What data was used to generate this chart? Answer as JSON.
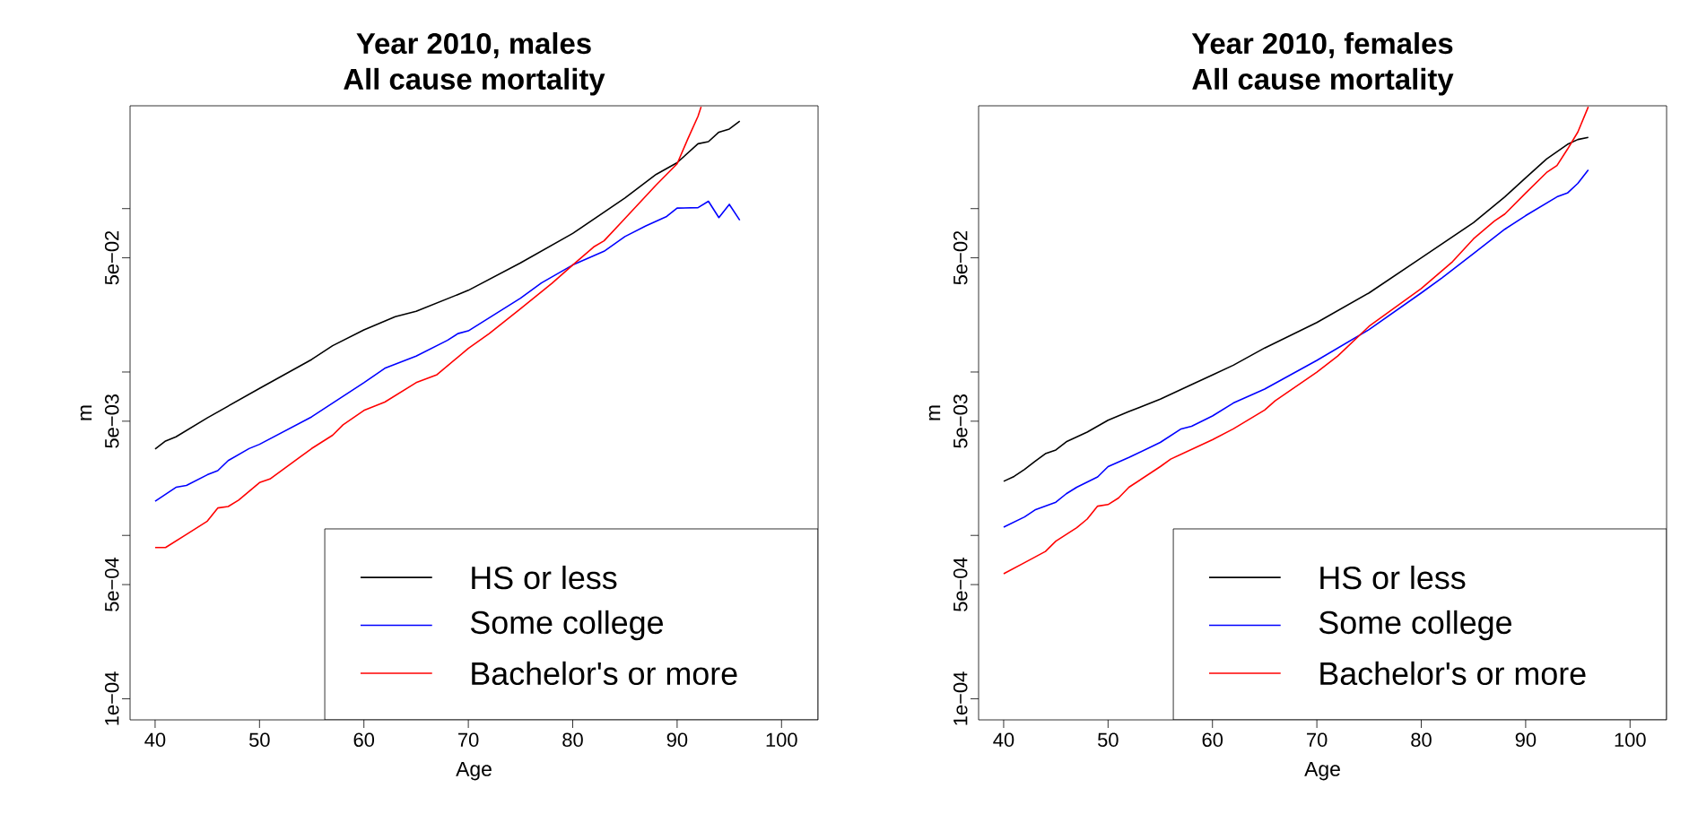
{
  "chart_data": [
    {
      "type": "line",
      "title": "Year 2010, males",
      "subtitle": "All cause mortality",
      "xlabel": "Age",
      "ylabel": "m",
      "log": "y",
      "legend": "bottom right",
      "xlim": [
        37.6,
        103.5
      ],
      "ylim": [
        7.43e-05,
        0.426
      ],
      "xticks": [
        40,
        50,
        60,
        70,
        80,
        90,
        100
      ],
      "yticks": [
        {
          "value": 0.0001,
          "label": "1e−04"
        },
        {
          "value": 0.0005,
          "label": "5e−04"
        },
        {
          "value": 0.001,
          "label": null
        },
        {
          "value": 0.005,
          "label": "5e−03"
        },
        {
          "value": 0.01,
          "label": null
        },
        {
          "value": 0.05,
          "label": "5e−02"
        },
        {
          "value": 0.1,
          "label": null
        }
      ],
      "series": [
        {
          "name": "HS or less",
          "color": "#000000",
          "x": [
            40,
            41,
            42,
            45,
            50,
            55,
            57,
            60,
            63,
            65,
            70,
            75,
            80,
            85,
            88,
            90,
            92,
            93,
            94,
            95,
            96
          ],
          "values": [
            0.00338,
            0.00378,
            0.00401,
            0.00524,
            0.00794,
            0.01194,
            0.01449,
            0.01811,
            0.02183,
            0.0235,
            0.03162,
            0.04656,
            0.07047,
            0.1161,
            0.1622,
            0.191,
            0.2495,
            0.257,
            0.2938,
            0.3069,
            0.3428
          ]
        },
        {
          "name": "Some college",
          "color": "#0000ff",
          "x": [
            40,
            42,
            43,
            45,
            46,
            47,
            49,
            50,
            55,
            60,
            62,
            65,
            68,
            69,
            70,
            75,
            77,
            80,
            83,
            85,
            87,
            89,
            90,
            92,
            93,
            94,
            95,
            96
          ],
          "values": [
            0.00162,
            0.00197,
            0.00202,
            0.00235,
            0.00249,
            0.00287,
            0.0034,
            0.00361,
            0.00532,
            0.00861,
            0.01054,
            0.0125,
            0.01563,
            0.01718,
            0.01786,
            0.02831,
            0.03508,
            0.04519,
            0.05483,
            0.06745,
            0.07834,
            0.08954,
            0.1007,
            0.1014,
            0.1109,
            0.0881,
            0.1062,
            0.0849
          ]
        },
        {
          "name": "Bachelor's or more",
          "color": "#ff0000",
          "x": [
            40,
            41,
            43,
            45,
            46,
            47,
            48,
            50,
            51,
            55,
            57,
            58,
            60,
            62,
            65,
            67,
            70,
            72,
            75,
            78,
            80,
            82,
            83,
            85,
            88,
            90,
            91,
            92,
            92.3
          ],
          "values": [
            0.000843,
            0.000843,
            0.001014,
            0.001222,
            0.001472,
            0.001503,
            0.001644,
            0.002104,
            0.002213,
            0.003404,
            0.004102,
            0.004753,
            0.005821,
            0.006546,
            0.00861,
            0.009638,
            0.01396,
            0.01718,
            0.02438,
            0.03483,
            0.04519,
            0.05821,
            0.06353,
            0.0869,
            0.1396,
            0.1879,
            0.2649,
            0.3673,
            0.42
          ]
        }
      ]
    },
    {
      "type": "line",
      "title": "Year 2010, females",
      "subtitle": "All cause mortality",
      "xlabel": "Age",
      "ylabel": "m",
      "log": "y",
      "legend": "bottom right",
      "xlim": [
        37.6,
        103.5
      ],
      "ylim": [
        7.43e-05,
        0.426
      ],
      "xticks": [
        40,
        50,
        60,
        70,
        80,
        90,
        100
      ],
      "yticks": [
        {
          "value": 0.0001,
          "label": "1e−04"
        },
        {
          "value": 0.0005,
          "label": "5e−04"
        },
        {
          "value": 0.001,
          "label": null
        },
        {
          "value": 0.005,
          "label": "5e−03"
        },
        {
          "value": 0.01,
          "label": null
        },
        {
          "value": 0.05,
          "label": "5e−02"
        },
        {
          "value": 0.1,
          "label": null
        }
      ],
      "series": [
        {
          "name": "HS or less",
          "color": "#000000",
          "x": [
            40,
            41,
            42,
            43,
            44,
            45,
            46,
            48,
            50,
            52,
            55,
            58,
            60,
            62,
            65,
            70,
            75,
            80,
            85,
            88,
            90,
            92,
            94,
            95,
            96
          ],
          "values": [
            0.002143,
            0.002296,
            0.002535,
            0.002843,
            0.003162,
            0.003334,
            0.003741,
            0.004285,
            0.00507,
            0.005728,
            0.006823,
            0.00838,
            0.009594,
            0.01101,
            0.01403,
            0.02009,
            0.03048,
            0.05,
            0.08204,
            0.118,
            0.1542,
            0.2014,
            0.2472,
            0.2649,
            0.2729
          ]
        },
        {
          "name": "Some college",
          "color": "#0000ff",
          "x": [
            40,
            42,
            43,
            45,
            46,
            47,
            49,
            50,
            52,
            55,
            57,
            58,
            60,
            62,
            65,
            70,
            75,
            80,
            82,
            85,
            88,
            90,
            93,
            94,
            95,
            96
          ],
          "values": [
            0.001125,
            0.001297,
            0.001432,
            0.001596,
            0.001799,
            0.001972,
            0.00228,
            0.002636,
            0.002999,
            0.003707,
            0.004487,
            0.004659,
            0.005383,
            0.006457,
            0.00787,
            0.01178,
            0.0182,
            0.03048,
            0.03776,
            0.05309,
            0.07478,
            0.09057,
            0.118,
            0.1245,
            0.1429,
            0.1726
          ]
        },
        {
          "name": "Bachelor's or more",
          "color": "#ff0000",
          "x": [
            40,
            42,
            44,
            45,
            47,
            48,
            49,
            50,
            51,
            52,
            55,
            56,
            60,
            62,
            65,
            66,
            70,
            72,
            75,
            80,
            83,
            85,
            87,
            88,
            90,
            92,
            93,
            94,
            95,
            96
          ],
          "values": [
            0.000583,
            0.000681,
            0.000798,
            0.000923,
            0.001115,
            0.001259,
            0.00151,
            0.001545,
            0.001694,
            0.001972,
            0.002636,
            0.002931,
            0.003855,
            0.004487,
            0.005848,
            0.006668,
            0.009977,
            0.01253,
            0.01905,
            0.03243,
            0.04742,
            0.06531,
            0.08395,
            0.09268,
            0.1245,
            0.1663,
            0.1837,
            0.2307,
            0.2944,
            0.42
          ]
        }
      ]
    }
  ]
}
